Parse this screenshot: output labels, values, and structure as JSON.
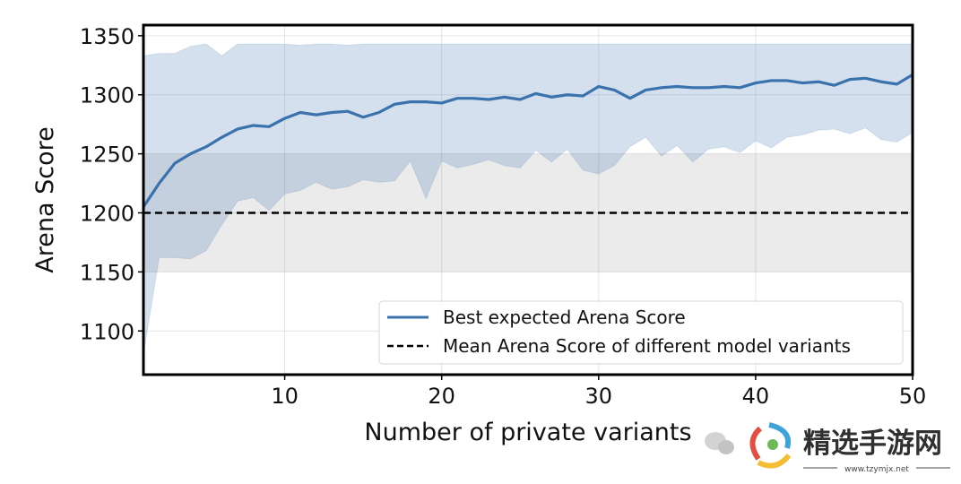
{
  "chart_data": {
    "type": "line",
    "title": "",
    "xlabel": "Number of private variants",
    "ylabel": "Arena Score",
    "xlim": [
      1,
      50
    ],
    "ylim": [
      1063,
      1359
    ],
    "xticks": [
      10,
      20,
      30,
      40,
      50
    ],
    "yticks": [
      1100,
      1150,
      1200,
      1250,
      1300,
      1350
    ],
    "grid": true,
    "legend_position": "bottom-right",
    "x": [
      1,
      2,
      3,
      4,
      5,
      6,
      7,
      8,
      9,
      10,
      11,
      12,
      13,
      14,
      15,
      16,
      17,
      18,
      19,
      20,
      21,
      22,
      23,
      24,
      25,
      26,
      27,
      28,
      29,
      30,
      31,
      32,
      33,
      34,
      35,
      36,
      37,
      38,
      39,
      40,
      41,
      42,
      43,
      44,
      45,
      46,
      47,
      48,
      49,
      50
    ],
    "series": [
      {
        "name": "Best expected Arena Score",
        "color": "#3a72ae",
        "values": [
          1205,
          1225,
          1242,
          1250,
          1256,
          1264,
          1271,
          1274,
          1273,
          1280,
          1285,
          1283,
          1285,
          1286,
          1281,
          1285,
          1292,
          1294,
          1294,
          1293,
          1297,
          1297,
          1296,
          1298,
          1296,
          1301,
          1298,
          1300,
          1299,
          1307,
          1304,
          1297,
          1304,
          1306,
          1307,
          1306,
          1306,
          1307,
          1306,
          1310,
          1312,
          1312,
          1310,
          1311,
          1308,
          1313,
          1314,
          1311,
          1309,
          1317
        ],
        "band_upper": [
          1333,
          1335,
          1335,
          1341,
          1343,
          1333,
          1343,
          1343,
          1343,
          1343,
          1342,
          1343,
          1343,
          1342,
          1343,
          1343,
          1343,
          1343,
          1343,
          1343,
          1343,
          1343,
          1343,
          1343,
          1343,
          1343,
          1343,
          1343,
          1343,
          1343,
          1343,
          1343,
          1343,
          1343,
          1343,
          1343,
          1343,
          1343,
          1343,
          1343,
          1343,
          1343,
          1343,
          1343,
          1343,
          1343,
          1343,
          1343,
          1343,
          1343
        ],
        "band_lower": [
          1080,
          1162,
          1162,
          1161,
          1168,
          1190,
          1210,
          1213,
          1202,
          1216,
          1219,
          1226,
          1220,
          1222,
          1228,
          1226,
          1227,
          1244,
          1212,
          1244,
          1238,
          1241,
          1245,
          1240,
          1238,
          1253,
          1243,
          1254,
          1236,
          1233,
          1240,
          1256,
          1264,
          1248,
          1257,
          1243,
          1254,
          1256,
          1251,
          1261,
          1255,
          1264,
          1266,
          1270,
          1271,
          1267,
          1272,
          1262,
          1260,
          1268
        ],
        "band_color": "#d3e0ef"
      },
      {
        "name": "Mean Arena Score of different model variants",
        "color": "#000000",
        "style": "dashed",
        "value": 1200,
        "band": [
          1150,
          1250
        ],
        "band_color": "#ebebeb"
      }
    ]
  },
  "watermark": {
    "site_name": "精选手游网",
    "url": "www.tzymjx.net"
  }
}
